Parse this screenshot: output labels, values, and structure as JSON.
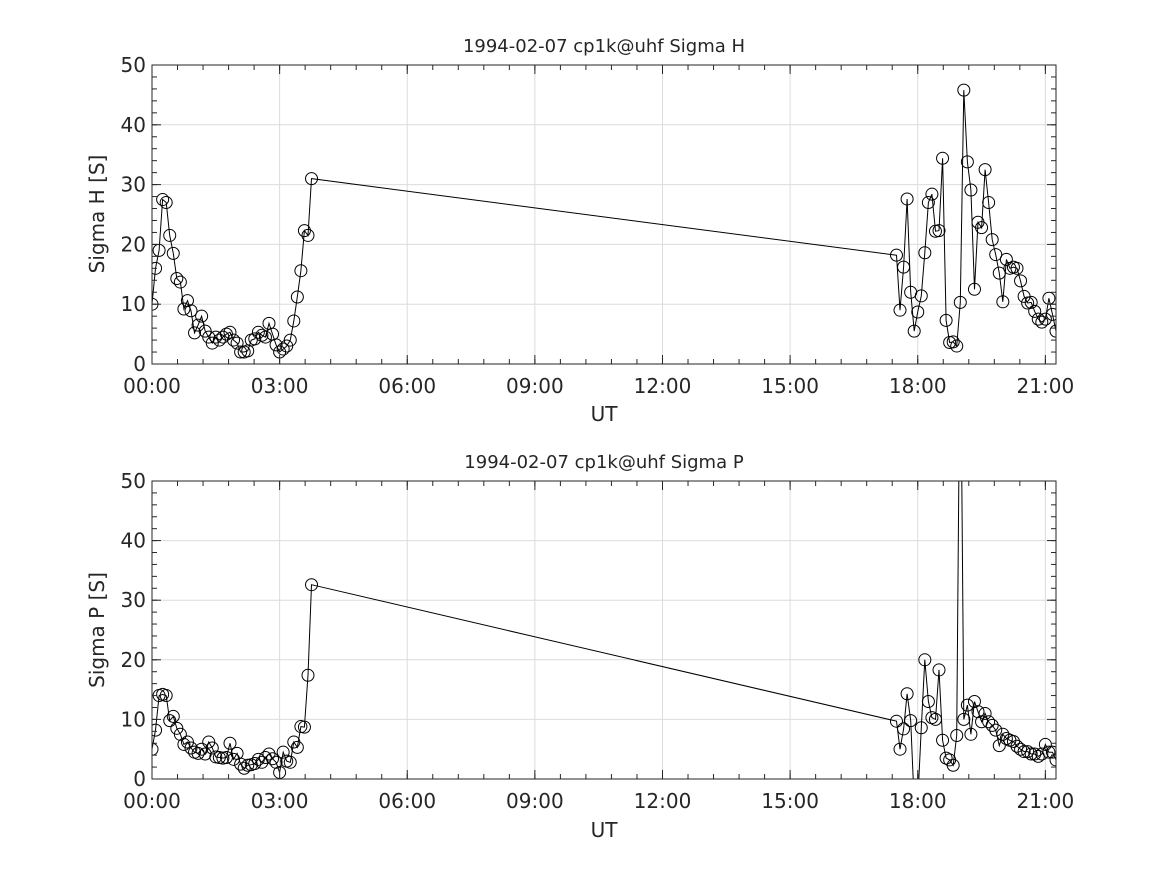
{
  "chart_data": [
    {
      "type": "line",
      "title": "1994-02-07  cp1k@uhf Sigma H",
      "xlabel": "UT",
      "ylabel": "Sigma H [S]",
      "x_unit": "minutes since 00:00 UT",
      "xlim": [
        0,
        1275
      ],
      "ylim": [
        0,
        50
      ],
      "xticks": [
        0,
        180,
        360,
        540,
        720,
        900,
        1080,
        1260
      ],
      "xticklabels": [
        "00:00",
        "03:00",
        "06:00",
        "09:00",
        "12:00",
        "15:00",
        "18:00",
        "21:00"
      ],
      "yticks": [
        0,
        10,
        20,
        30,
        40,
        50
      ],
      "yticklabels": [
        "0",
        "10",
        "20",
        "30",
        "40",
        "50"
      ],
      "grid": true,
      "marker": "open-circle",
      "color": "#000000",
      "x": [
        0,
        5,
        10,
        15,
        20,
        25,
        30,
        35,
        40,
        45,
        50,
        55,
        60,
        65,
        70,
        75,
        80,
        85,
        90,
        95,
        100,
        105,
        110,
        115,
        120,
        125,
        130,
        135,
        140,
        145,
        150,
        155,
        160,
        165,
        170,
        175,
        180,
        185,
        190,
        195,
        200,
        205,
        210,
        215,
        220,
        225,
        1050,
        1055,
        1060,
        1065,
        1070,
        1075,
        1080,
        1085,
        1090,
        1095,
        1100,
        1105,
        1110,
        1115,
        1120,
        1125,
        1130,
        1135,
        1140,
        1145,
        1150,
        1155,
        1160,
        1165,
        1170,
        1175,
        1180,
        1185,
        1190,
        1195,
        1200,
        1205,
        1210,
        1215,
        1220,
        1225,
        1230,
        1235,
        1240,
        1245,
        1250,
        1255,
        1260,
        1265,
        1270,
        1275
      ],
      "y": [
        10,
        16,
        19,
        27.5,
        27,
        21.5,
        18.5,
        14.3,
        13.7,
        9.2,
        10.6,
        8.9,
        5.2,
        6.5,
        8,
        5.5,
        4.5,
        3.5,
        4.5,
        4,
        4.5,
        5,
        5.3,
        4,
        3.5,
        2,
        2,
        2.2,
        4,
        4.2,
        5.3,
        4.8,
        4.5,
        6.8,
        5,
        3.2,
        2,
        2.5,
        3,
        4,
        7.2,
        11.2,
        15.6,
        22.3,
        21.5,
        31,
        18.2,
        9,
        16.2,
        27.6,
        12,
        5.5,
        8.7,
        11.4,
        18.6,
        27,
        28.4,
        22.2,
        22.3,
        34.4,
        7.3,
        3.6,
        3.7,
        3,
        10.3,
        45.8,
        33.8,
        29.1,
        12.5,
        23.7,
        22.8,
        32.5,
        27,
        20.8,
        18.3,
        15.2,
        10.4,
        17.5,
        16,
        16.2,
        16,
        13.9,
        11.3,
        10.2,
        10.3,
        8.8,
        7.5,
        7,
        7.5,
        11,
        8.3,
        5.5
      ]
    },
    {
      "type": "line",
      "title": "1994-02-07  cp1k@uhf Sigma P",
      "xlabel": "UT",
      "ylabel": "Sigma P [S]",
      "x_unit": "minutes since 00:00 UT",
      "xlim": [
        0,
        1275
      ],
      "ylim": [
        0,
        50
      ],
      "xticks": [
        0,
        180,
        360,
        540,
        720,
        900,
        1080,
        1260
      ],
      "xticklabels": [
        "00:00",
        "03:00",
        "06:00",
        "09:00",
        "12:00",
        "15:00",
        "18:00",
        "21:00"
      ],
      "yticks": [
        0,
        10,
        20,
        30,
        40,
        50
      ],
      "yticklabels": [
        "0",
        "10",
        "20",
        "30",
        "40",
        "50"
      ],
      "grid": true,
      "marker": "open-circle",
      "color": "#000000",
      "x": [
        0,
        5,
        10,
        15,
        20,
        25,
        30,
        35,
        40,
        45,
        50,
        55,
        60,
        65,
        70,
        75,
        80,
        85,
        90,
        95,
        100,
        105,
        110,
        115,
        120,
        125,
        130,
        135,
        140,
        145,
        150,
        155,
        160,
        165,
        170,
        175,
        180,
        185,
        190,
        195,
        200,
        205,
        210,
        215,
        220,
        225,
        1050,
        1055,
        1060,
        1065,
        1070,
        1075,
        1080,
        1085,
        1090,
        1095,
        1100,
        1105,
        1110,
        1115,
        1120,
        1125,
        1130,
        1135,
        1140,
        1145,
        1150,
        1155,
        1160,
        1165,
        1170,
        1175,
        1180,
        1185,
        1190,
        1195,
        1200,
        1205,
        1210,
        1215,
        1220,
        1225,
        1230,
        1235,
        1240,
        1245,
        1250,
        1255,
        1260,
        1265,
        1270,
        1275
      ],
      "y": [
        5,
        8.2,
        14,
        14.2,
        14,
        9.8,
        10.5,
        8.5,
        7.5,
        5.8,
        6.2,
        5.2,
        4.5,
        4.3,
        5,
        4.2,
        6.2,
        5.2,
        3.7,
        3.6,
        3.5,
        3.6,
        6,
        3.3,
        4.3,
        2.5,
        1.8,
        2.3,
        2.4,
        2.6,
        3.3,
        2.8,
        3.6,
        4.2,
        3.4,
        2.8,
        1.1,
        4.5,
        3,
        2.8,
        6.2,
        5.3,
        8.8,
        8.7,
        17.4,
        32.6,
        9.7,
        5,
        8.4,
        14.3,
        9.8,
        -4,
        -4,
        8.6,
        20,
        13,
        10.3,
        10,
        18.3,
        6.5,
        3.5,
        3.2,
        2.3,
        7.3,
        80,
        10,
        12.4,
        7.5,
        13,
        11.3,
        9.6,
        11,
        9.6,
        9,
        8.2,
        5.6,
        7.5,
        6.8,
        6.5,
        6.3,
        5.5,
        5,
        4.6,
        4.6,
        4.2,
        4.2,
        3.8,
        4.2,
        5.8,
        4.5,
        4.5,
        3.2
      ]
    }
  ]
}
